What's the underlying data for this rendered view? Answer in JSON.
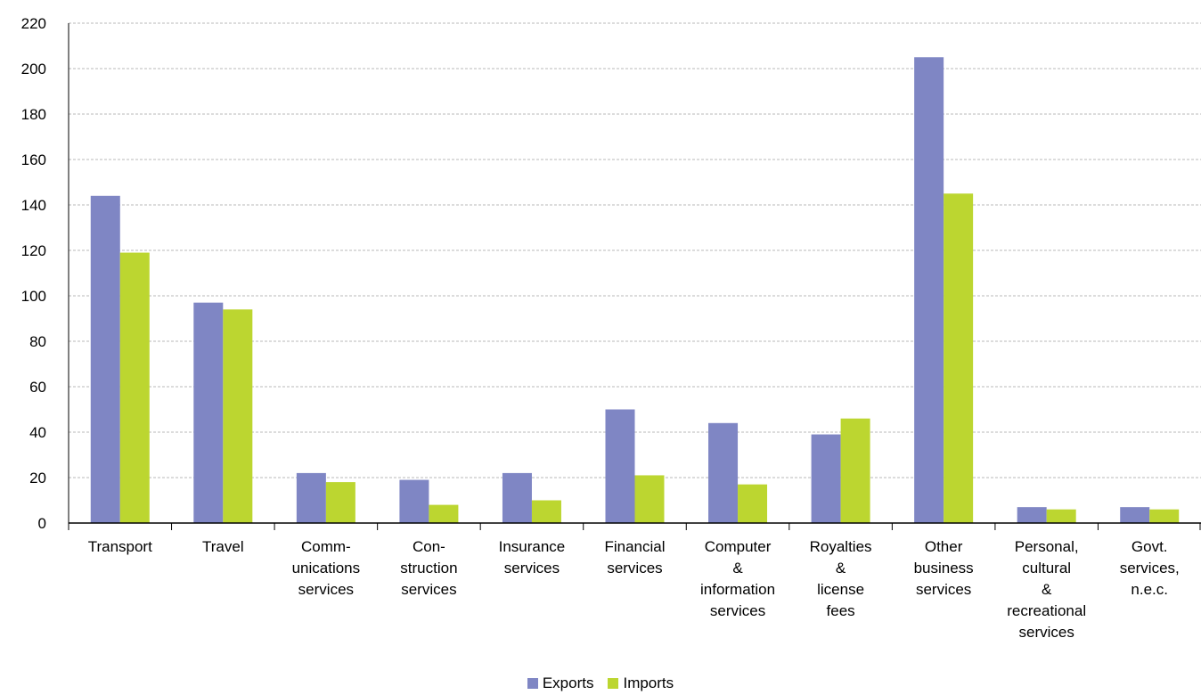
{
  "chart_data": {
    "type": "bar",
    "categories": [
      [
        "Transport"
      ],
      [
        "Travel"
      ],
      [
        "Comm-",
        "unications",
        "services"
      ],
      [
        "Con-",
        "struction",
        "services"
      ],
      [
        "Insurance",
        "services"
      ],
      [
        "Financial",
        "services"
      ],
      [
        "Computer",
        "&",
        "information",
        "services"
      ],
      [
        "Royalties",
        "&",
        "license",
        "fees"
      ],
      [
        "Other",
        "business",
        "services"
      ],
      [
        "Personal,",
        "cultural",
        "&",
        "recreational",
        "services"
      ],
      [
        "Govt.",
        "services,",
        "n.e.c."
      ]
    ],
    "series": [
      {
        "name": "Exports",
        "color": "#7f86c4",
        "values": [
          144,
          97,
          22,
          19,
          22,
          50,
          44,
          39,
          205,
          7,
          7
        ]
      },
      {
        "name": "Imports",
        "color": "#bcd630",
        "values": [
          119,
          94,
          18,
          8,
          10,
          21,
          17,
          46,
          145,
          6,
          6
        ]
      }
    ],
    "yticks": [
      0,
      20,
      40,
      60,
      80,
      100,
      120,
      140,
      160,
      180,
      200,
      220
    ],
    "ylim": [
      0,
      220
    ],
    "grid": true,
    "legend_position": "bottom"
  }
}
